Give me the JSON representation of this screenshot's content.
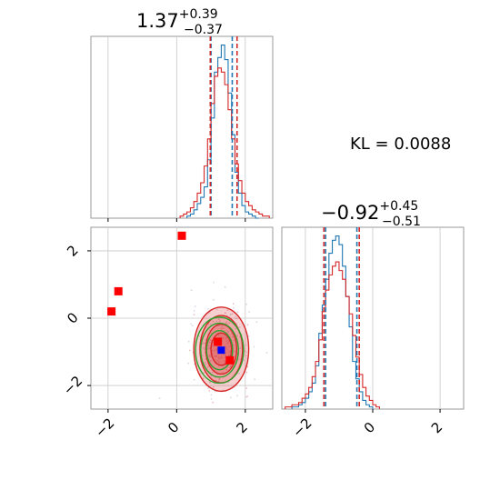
{
  "chart_data": [
    {
      "type": "histogram",
      "panel": "marginal-x",
      "title": {
        "value": "1.37",
        "upper": "+0.39",
        "lower": "−0.37"
      },
      "xlim": [
        -2.5,
        2.8
      ],
      "grid": true,
      "xticks": [
        -2,
        0,
        2
      ],
      "series": [
        {
          "name": "",
          "color": "#1f77b4",
          "bin_edges": [
            0.3,
            0.4,
            0.5,
            0.6,
            0.7,
            0.8,
            0.9,
            1.0,
            1.1,
            1.2,
            1.3,
            1.4,
            1.5,
            1.6,
            1.7,
            1.8,
            1.9,
            2.0,
            2.1,
            2.2,
            2.3,
            2.4
          ],
          "counts": [
            1,
            2,
            4,
            7,
            10,
            15,
            28,
            48,
            70,
            77,
            83,
            76,
            60,
            40,
            22,
            12,
            6,
            3,
            2,
            1,
            0
          ]
        },
        {
          "name": "",
          "color": "#d62728",
          "bin_edges": [
            0.1,
            0.2,
            0.3,
            0.4,
            0.5,
            0.6,
            0.7,
            0.8,
            0.9,
            1.0,
            1.1,
            1.2,
            1.3,
            1.4,
            1.5,
            1.6,
            1.7,
            1.8,
            1.9,
            2.0,
            2.1,
            2.2,
            2.3,
            2.4,
            2.5,
            2.6,
            2.7
          ],
          "counts": [
            1,
            2,
            3,
            5,
            8,
            12,
            17,
            25,
            38,
            55,
            68,
            72,
            70,
            64,
            52,
            38,
            26,
            18,
            12,
            8,
            6,
            4,
            3,
            2,
            1,
            1
          ]
        }
      ],
      "quantile_lines": [
        {
          "color": "#1f77b4",
          "values": [
            1.0,
            1.62
          ]
        },
        {
          "color": "#d62728",
          "values": [
            0.98,
            1.76
          ]
        }
      ]
    },
    {
      "type": "histogram",
      "panel": "marginal-y",
      "title": {
        "value": "−0.92",
        "upper": "+0.45",
        "lower": "−0.51"
      },
      "xlim": [
        -2.7,
        2.7
      ],
      "grid": true,
      "xticks": [
        -2,
        0,
        2
      ],
      "series": [
        {
          "name": "",
          "color": "#1f77b4",
          "bin_edges": [
            -2.4,
            -2.3,
            -2.2,
            -2.1,
            -2.0,
            -1.9,
            -1.8,
            -1.7,
            -1.6,
            -1.5,
            -1.4,
            -1.3,
            -1.2,
            -1.1,
            -1.0,
            -0.9,
            -0.8,
            -0.7,
            -0.6,
            -0.5,
            -0.4,
            -0.3,
            -0.2,
            -0.1,
            0.0
          ],
          "counts": [
            1,
            1,
            2,
            3,
            5,
            8,
            12,
            20,
            35,
            48,
            60,
            72,
            78,
            80,
            76,
            66,
            52,
            38,
            22,
            14,
            8,
            4,
            2,
            1
          ]
        },
        {
          "name": "",
          "color": "#d62728",
          "bin_edges": [
            -2.6,
            -2.5,
            -2.4,
            -2.3,
            -2.2,
            -2.1,
            -2.0,
            -1.9,
            -1.8,
            -1.7,
            -1.6,
            -1.5,
            -1.4,
            -1.3,
            -1.2,
            -1.1,
            -1.0,
            -0.9,
            -0.8,
            -0.7,
            -0.6,
            -0.5,
            -0.4,
            -0.3,
            -0.2,
            -0.1,
            0.0,
            0.1,
            0.2
          ],
          "counts": [
            1,
            1,
            2,
            2,
            3,
            5,
            7,
            10,
            15,
            22,
            32,
            45,
            55,
            62,
            66,
            68,
            64,
            60,
            52,
            44,
            34,
            24,
            16,
            10,
            6,
            4,
            2,
            1
          ]
        }
      ],
      "quantile_lines": [
        {
          "color": "#1f77b4",
          "values": [
            -1.4,
            -0.47
          ]
        },
        {
          "color": "#d62728",
          "values": [
            -1.45,
            -0.4
          ]
        }
      ]
    },
    {
      "type": "scatter",
      "panel": "joint",
      "xlim": [
        -2.5,
        2.8
      ],
      "ylim": [
        -2.7,
        2.7
      ],
      "grid": true,
      "xticks": [
        -2,
        0,
        2
      ],
      "yticks": [
        -2,
        0,
        2
      ],
      "contours": [
        {
          "color": "#d62728",
          "filled": true,
          "center": [
            1.3,
            -0.92
          ],
          "radii": [
            [
              0.8,
              1.25
            ],
            [
              0.62,
              1.0
            ],
            [
              0.45,
              0.74
            ],
            [
              0.3,
              0.48
            ]
          ]
        },
        {
          "color": "#2ca02c",
          "filled": false,
          "center": [
            1.25,
            -0.95
          ],
          "radii": [
            [
              0.7,
              0.98
            ],
            [
              0.55,
              0.8
            ],
            [
              0.38,
              0.58
            ]
          ]
        }
      ],
      "points": [
        {
          "x": 0.15,
          "y": 2.45,
          "color": "#ff0000"
        },
        {
          "x": -1.7,
          "y": 0.8,
          "color": "#ff0000"
        },
        {
          "x": -1.9,
          "y": 0.2,
          "color": "#ff0000"
        },
        {
          "x": 1.2,
          "y": -0.7,
          "color": "#ff0000"
        },
        {
          "x": 1.55,
          "y": -1.25,
          "color": "#ff0000"
        },
        {
          "x": 1.3,
          "y": -0.95,
          "color": "#0000ff"
        }
      ]
    }
  ],
  "annotation": {
    "kl_label": "KL = 0.0088"
  }
}
